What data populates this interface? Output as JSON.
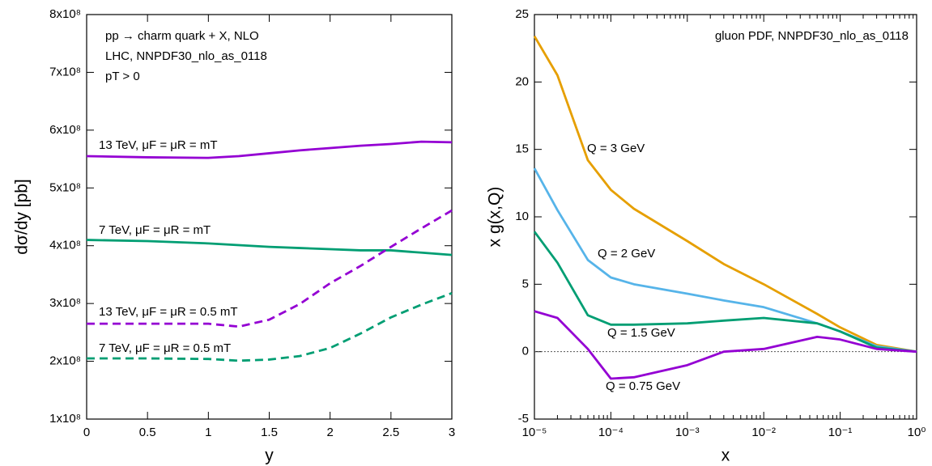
{
  "chart_data": [
    {
      "type": "line",
      "xlabel": "y",
      "ylabel": "dσ/dy [pb]",
      "annotations": [
        "pp → charm quark + X, NLO",
        "LHC, NNPDF30_nlo_as_0118",
        "pT > 0"
      ],
      "x": [
        0,
        0.5,
        1,
        1.25,
        1.5,
        1.75,
        2,
        2.25,
        2.5,
        2.75,
        3
      ],
      "series": [
        {
          "name": "13 TeV, μF = μR = mT",
          "color": "#9400d3",
          "dashed": false,
          "values": [
            555000000,
            553000000,
            552000000,
            555000000,
            560000000,
            565000000,
            569000000,
            573000000,
            576000000,
            580000000,
            579000000
          ]
        },
        {
          "name": "7 TeV,  μF = μR = mT",
          "color": "#009e73",
          "dashed": false,
          "values": [
            410000000,
            408000000,
            404000000,
            401000000,
            398000000,
            396000000,
            394000000,
            392000000,
            392000000,
            388000000,
            384000000
          ]
        },
        {
          "name": "13 TeV, μF = μR = 0.5 mT",
          "color": "#9400d3",
          "dashed": true,
          "values": [
            265000000,
            265000000,
            265000000,
            260000000,
            272000000,
            299000000,
            335000000,
            365000000,
            398000000,
            430000000,
            461000000
          ]
        },
        {
          "name": "7 TeV,  μF = μR = 0.5 mT",
          "color": "#009e73",
          "dashed": true,
          "values": [
            205000000,
            205000000,
            204000000,
            201000000,
            203000000,
            209000000,
            223000000,
            248000000,
            276000000,
            298000000,
            318000000
          ]
        }
      ],
      "xlim": [
        0,
        3
      ],
      "xticks": [
        0,
        0.5,
        1,
        1.5,
        2,
        2.5,
        3
      ],
      "ylim": [
        100000000,
        800000000
      ],
      "yticks": [
        {
          "value": 100000000,
          "label": "1x10⁸"
        },
        {
          "value": 200000000,
          "label": "2x10⁸"
        },
        {
          "value": 300000000,
          "label": "3x10⁸"
        },
        {
          "value": 400000000,
          "label": "4x10⁸"
        },
        {
          "value": 500000000,
          "label": "5x10⁸"
        },
        {
          "value": 600000000,
          "label": "6x10⁸"
        },
        {
          "value": 700000000,
          "label": "7x10⁸"
        },
        {
          "value": 800000000,
          "label": "8x10⁸"
        }
      ],
      "xscale": "linear",
      "zero_line": false
    },
    {
      "type": "line",
      "xlabel": "x",
      "ylabel": "x g(x,Q)",
      "annotations": [
        "gluon PDF, NNPDF30_nlo_as_0118"
      ],
      "x": [
        1e-05,
        2e-05,
        5e-05,
        0.0001,
        0.0002,
        0.001,
        0.003,
        0.01,
        0.05,
        0.1,
        0.3,
        1
      ],
      "series": [
        {
          "name": "Q = 3 GeV",
          "color": "#e69f00",
          "dashed": false,
          "values": [
            23.4,
            20.5,
            14.2,
            12.0,
            10.6,
            8.2,
            6.5,
            5.0,
            2.8,
            1.8,
            0.5,
            0
          ]
        },
        {
          "name": "Q = 2 GeV",
          "color": "#56b4e9",
          "dashed": false,
          "values": [
            13.6,
            10.5,
            6.8,
            5.5,
            5.0,
            4.3,
            3.8,
            3.3,
            2.1,
            1.5,
            0.4,
            0
          ]
        },
        {
          "name": "Q = 1.5 GeV",
          "color": "#009e73",
          "dashed": false,
          "values": [
            8.9,
            6.6,
            2.7,
            2.0,
            2.0,
            2.1,
            2.3,
            2.5,
            2.1,
            1.5,
            0.3,
            0
          ]
        },
        {
          "name": "Q = 0.75 GeV",
          "color": "#9400d3",
          "dashed": false,
          "values": [
            3.0,
            2.5,
            0.2,
            -2.0,
            -1.9,
            -1.0,
            0,
            0.2,
            1.1,
            0.9,
            0.2,
            0
          ]
        }
      ],
      "xlim": [
        1e-05,
        1
      ],
      "xticks": [
        {
          "value": 1e-05,
          "label": "10⁻⁵"
        },
        {
          "value": 0.0001,
          "label": "10⁻⁴"
        },
        {
          "value": 0.001,
          "label": "10⁻³"
        },
        {
          "value": 0.01,
          "label": "10⁻²"
        },
        {
          "value": 0.1,
          "label": "10⁻¹"
        },
        {
          "value": 1,
          "label": "10⁰"
        }
      ],
      "ylim": [
        -5,
        25
      ],
      "yticks": [
        -5,
        0,
        5,
        10,
        15,
        20,
        25
      ],
      "xscale": "log",
      "zero_line": true
    }
  ]
}
